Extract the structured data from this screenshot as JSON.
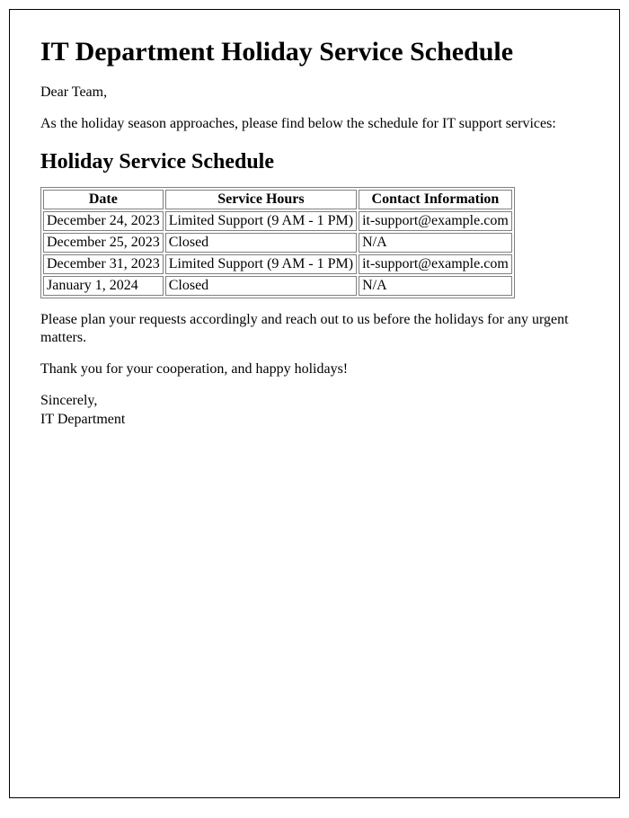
{
  "title": "IT Department Holiday Service Schedule",
  "greeting": "Dear Team,",
  "intro": "As the holiday season approaches, please find below the schedule for IT support services:",
  "section_heading": "Holiday Service Schedule",
  "table": {
    "columns": [
      "Date",
      "Service Hours",
      "Contact Information"
    ],
    "rows": [
      [
        "December 24, 2023",
        "Limited Support (9 AM - 1 PM)",
        "it-support@example.com"
      ],
      [
        "December 25, 2023",
        "Closed",
        "N/A"
      ],
      [
        "December 31, 2023",
        "Limited Support (9 AM - 1 PM)",
        "it-support@example.com"
      ],
      [
        "January 1, 2024",
        "Closed",
        "N/A"
      ]
    ],
    "border_color": "#808080",
    "header_align": "center",
    "cell_align": "left",
    "font_size": 16
  },
  "planning": "Please plan your requests accordingly and reach out to us before the holidays for any urgent matters.",
  "thanks": "Thank you for your cooperation, and happy holidays!",
  "signoff_label": "Sincerely,",
  "signoff_dept": "IT Department",
  "page_border_color": "#000000",
  "background_color": "#ffffff",
  "text_color": "#000000"
}
